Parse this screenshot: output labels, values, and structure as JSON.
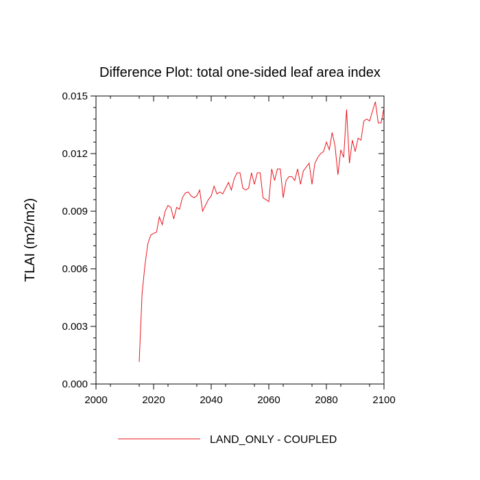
{
  "chart_data": {
    "type": "line",
    "title": "Difference Plot: total one-sided leaf area index",
    "xlabel": "",
    "ylabel": "TLAI  (m2/m2)",
    "xlim": [
      2000,
      2100
    ],
    "ylim": [
      0.0,
      0.015
    ],
    "x_ticks": [
      2000,
      2020,
      2040,
      2060,
      2080,
      2100
    ],
    "x_tick_labels": [
      "2000",
      "2020",
      "2040",
      "2060",
      "2080",
      "2100"
    ],
    "y_ticks": [
      0.0,
      0.003,
      0.006,
      0.009,
      0.012,
      0.015
    ],
    "y_tick_labels": [
      "0.000",
      "0.003",
      "0.006",
      "0.009",
      "0.012",
      "0.015"
    ],
    "grid": false,
    "legend_position": "bottom-center",
    "series": [
      {
        "name": "LAND_ONLY - COUPLED",
        "color": "#e8141c",
        "x": [
          2015,
          2016,
          2017,
          2018,
          2019,
          2020,
          2021,
          2022,
          2023,
          2024,
          2025,
          2026,
          2027,
          2028,
          2029,
          2030,
          2031,
          2032,
          2033,
          2034,
          2035,
          2036,
          2037,
          2038,
          2039,
          2040,
          2041,
          2042,
          2043,
          2044,
          2045,
          2046,
          2047,
          2048,
          2049,
          2050,
          2051,
          2052,
          2053,
          2054,
          2055,
          2056,
          2057,
          2058,
          2059,
          2060,
          2061,
          2062,
          2063,
          2064,
          2065,
          2066,
          2067,
          2068,
          2069,
          2070,
          2071,
          2072,
          2073,
          2074,
          2075,
          2076,
          2077,
          2078,
          2079,
          2080,
          2081,
          2082,
          2083,
          2084,
          2085,
          2086,
          2087,
          2088,
          2089,
          2090,
          2091,
          2092,
          2093,
          2094,
          2095,
          2096,
          2097,
          2098,
          2099,
          2100
        ],
        "y": [
          0.00115,
          0.0047,
          0.0062,
          0.0073,
          0.00775,
          0.00785,
          0.0079,
          0.0087,
          0.0083,
          0.009,
          0.0093,
          0.0092,
          0.0086,
          0.0092,
          0.0091,
          0.0097,
          0.00995,
          0.01,
          0.0098,
          0.0097,
          0.0098,
          0.0101,
          0.009,
          0.0093,
          0.0096,
          0.0098,
          0.0103,
          0.0099,
          0.01,
          0.0099,
          0.0102,
          0.0105,
          0.0101,
          0.0107,
          0.011,
          0.011,
          0.0102,
          0.0101,
          0.0102,
          0.011,
          0.0104,
          0.011,
          0.011,
          0.0097,
          0.0096,
          0.0095,
          0.0112,
          0.0106,
          0.0112,
          0.0112,
          0.0097,
          0.0106,
          0.0108,
          0.0108,
          0.0106,
          0.0112,
          0.0104,
          0.0111,
          0.0113,
          0.0115,
          0.0104,
          0.0115,
          0.0118,
          0.012,
          0.0121,
          0.0126,
          0.0122,
          0.0131,
          0.0124,
          0.0109,
          0.0122,
          0.0118,
          0.0143,
          0.0115,
          0.0127,
          0.0121,
          0.0128,
          0.0127,
          0.0137,
          0.0138,
          0.0137,
          0.0142,
          0.0147,
          0.0136,
          0.0136,
          0.0144
        ]
      }
    ]
  }
}
